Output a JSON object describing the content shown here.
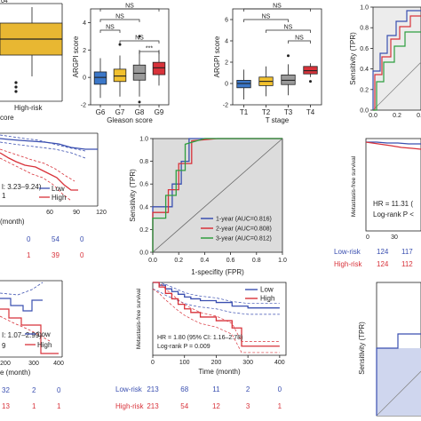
{
  "colors": {
    "low": "#3a4fb0",
    "high": "#d8323a",
    "gleason": [
      "#3b77c8",
      "#f2c12e",
      "#9a9a9a",
      "#d8323a"
    ],
    "tstage": [
      "#3b77c8",
      "#f2c12e",
      "#9a9a9a",
      "#d8323a"
    ],
    "box_yellow": "#e8b732",
    "roc1": "#3a4fb0",
    "roc2": "#d8323a",
    "roc3": "#2e9e3f"
  },
  "chart_data": [
    {
      "id": "a-partial-box",
      "type": "box",
      "tick_labels": [
        "High-risk"
      ],
      "xlabel_fragment": "core",
      "title_fragment": "04"
    },
    {
      "id": "b-gleason",
      "type": "box",
      "ylabel": "ARGPI score",
      "xlabel": "Gleason score",
      "categories": [
        "G6",
        "G7",
        "G8",
        "G9"
      ],
      "ylim": [
        -2,
        5
      ],
      "yticks": [
        "-2",
        "0",
        "2",
        "4"
      ],
      "boxes": [
        {
          "min": -1.5,
          "q1": -0.5,
          "median": 0.0,
          "q3": 0.4,
          "max": 1.4,
          "outliers": []
        },
        {
          "min": -1.4,
          "q1": -0.3,
          "median": 0.1,
          "q3": 0.6,
          "max": 1.6,
          "outliers": [
            2.4
          ]
        },
        {
          "min": -1.4,
          "q1": -0.2,
          "median": 0.3,
          "q3": 0.9,
          "max": 2.0,
          "outliers": [
            3.0,
            -1.8
          ]
        },
        {
          "min": -0.6,
          "q1": 0.2,
          "median": 0.7,
          "q3": 1.1,
          "max": 2.0,
          "outliers": []
        }
      ],
      "comparisons": [
        "NS",
        "NS",
        "NS",
        "NS",
        "***"
      ]
    },
    {
      "id": "c-tstage",
      "type": "box",
      "ylabel": "ARGPI score",
      "xlabel": "T stage",
      "categories": [
        "T1",
        "T2",
        "T3",
        "T4"
      ],
      "ylim": [
        -2,
        7
      ],
      "yticks": [
        "-2",
        "0",
        "2",
        "4",
        "6"
      ],
      "boxes": [
        {
          "min": -1.5,
          "q1": -0.4,
          "median": 0.0,
          "q3": 0.3,
          "max": 1.3,
          "outliers": []
        },
        {
          "min": -1.2,
          "q1": -0.2,
          "median": 0.2,
          "q3": 0.6,
          "max": 1.6,
          "outliers": []
        },
        {
          "min": -1.1,
          "q1": -0.1,
          "median": 0.3,
          "q3": 0.8,
          "max": 1.8,
          "outliers": [
            2.6
          ]
        },
        {
          "min": 0.6,
          "q1": 0.9,
          "median": 1.2,
          "q3": 1.6,
          "max": 1.9,
          "outliers": [
            0.2
          ]
        }
      ],
      "comparisons": [
        "NS",
        "NS",
        "NS",
        "NS"
      ]
    },
    {
      "id": "d-partial-roc",
      "type": "line",
      "ylabel": "Sensitivity (TPR)",
      "yticks": [
        "0.0",
        "0.2",
        "0.4",
        "0.6",
        "0.8",
        "1.0"
      ],
      "xticks": [
        "0.0",
        "0.2",
        "0.4"
      ]
    },
    {
      "id": "e-partial-km",
      "type": "line",
      "text_fragments": [
        "l: 3.23–9.24)",
        "1",
        "Low",
        "High"
      ],
      "xlabel_fragment": "(month)",
      "xticks": [
        "60",
        "90",
        "120"
      ],
      "risk_table": {
        "low": [
          "0",
          "54",
          "0"
        ],
        "high": [
          "1",
          "39",
          "0"
        ]
      }
    },
    {
      "id": "f-roc",
      "type": "line",
      "ylabel": "Sensitivity (TPR)",
      "xlabel": "1-specifity (FPR)",
      "xticks": [
        "0.0",
        "0.2",
        "0.4",
        "0.6",
        "0.8",
        "1.0"
      ],
      "yticks": [
        "0.0",
        "0.2",
        "0.4",
        "0.6",
        "0.8",
        "1.0"
      ],
      "series": [
        {
          "name": "1-year (AUC=0.816)",
          "x": [
            0,
            0,
            0.15,
            0.15,
            0.22,
            0.22,
            0.28,
            0.28,
            0.45,
            0.45,
            1
          ],
          "y": [
            0,
            0.4,
            0.4,
            0.6,
            0.6,
            0.8,
            0.8,
            1.0,
            1.0,
            1.0,
            1.0
          ]
        },
        {
          "name": "2-year (AUC=0.808)",
          "x": [
            0,
            0,
            0.12,
            0.12,
            0.2,
            0.2,
            0.3,
            0.3,
            0.5,
            1
          ],
          "y": [
            0,
            0.35,
            0.35,
            0.55,
            0.55,
            0.78,
            0.78,
            0.98,
            1.0,
            1.0
          ]
        },
        {
          "name": "3-year (AUC=0.812)",
          "x": [
            0,
            0,
            0.1,
            0.1,
            0.18,
            0.18,
            0.25,
            0.25,
            0.4,
            1
          ],
          "y": [
            0,
            0.3,
            0.3,
            0.5,
            0.5,
            0.72,
            0.72,
            0.95,
            1.0,
            1.0
          ]
        }
      ]
    },
    {
      "id": "g-partial-km",
      "type": "line",
      "ylabel": "Metastasis-free survival",
      "text_fragments": [
        "HR = 11.31 (",
        "Log-rank P <"
      ],
      "xticks": [
        "0",
        "30"
      ],
      "risk_table": {
        "low_label": "Low-risk",
        "high_label": "High-risk",
        "low": [
          "124",
          "117"
        ],
        "high": [
          "124",
          "112"
        ]
      }
    },
    {
      "id": "h-partial-km",
      "type": "line",
      "text_fragments": [
        "I: 1.07–2.99)",
        "9",
        "Low",
        "High"
      ],
      "xlabel_fragment": "e (month)",
      "xticks": [
        "200",
        "300",
        "400"
      ],
      "risk_table": {
        "low": [
          "32",
          "2",
          "0"
        ],
        "high": [
          "13",
          "1",
          "1"
        ]
      }
    },
    {
      "id": "i-km",
      "type": "line",
      "ylabel": "Metastasis-free survival",
      "xlabel": "Time (month)",
      "xticks": [
        "0",
        "100",
        "200",
        "300",
        "400"
      ],
      "legend": [
        "Low",
        "High"
      ],
      "annotation": [
        "HR = 1.80 (95% CI: 1.16–2.78)",
        "Log-rank P = 0.009"
      ],
      "series": [
        {
          "name": "Low",
          "x": [
            0,
            20,
            40,
            60,
            80,
            100,
            120,
            150,
            200,
            250,
            300,
            350,
            400
          ],
          "y": [
            1.0,
            0.97,
            0.93,
            0.9,
            0.87,
            0.84,
            0.82,
            0.8,
            0.78,
            0.74,
            0.72,
            0.72,
            0.72
          ]
        },
        {
          "name": "High",
          "x": [
            0,
            20,
            40,
            60,
            80,
            100,
            120,
            150,
            200,
            250,
            280,
            300,
            400
          ],
          "y": [
            1.0,
            0.95,
            0.88,
            0.82,
            0.76,
            0.71,
            0.67,
            0.62,
            0.58,
            0.5,
            0.3,
            0.3,
            0.3
          ]
        }
      ],
      "risk_table": {
        "low_label": "Low-risk",
        "high_label": "High-risk",
        "low": [
          "213",
          "68",
          "11",
          "2",
          "0"
        ],
        "high": [
          "213",
          "54",
          "12",
          "3",
          "1"
        ]
      }
    },
    {
      "id": "j-partial-roc",
      "type": "line",
      "ylabel": "Sensitivity (TPR)"
    }
  ]
}
